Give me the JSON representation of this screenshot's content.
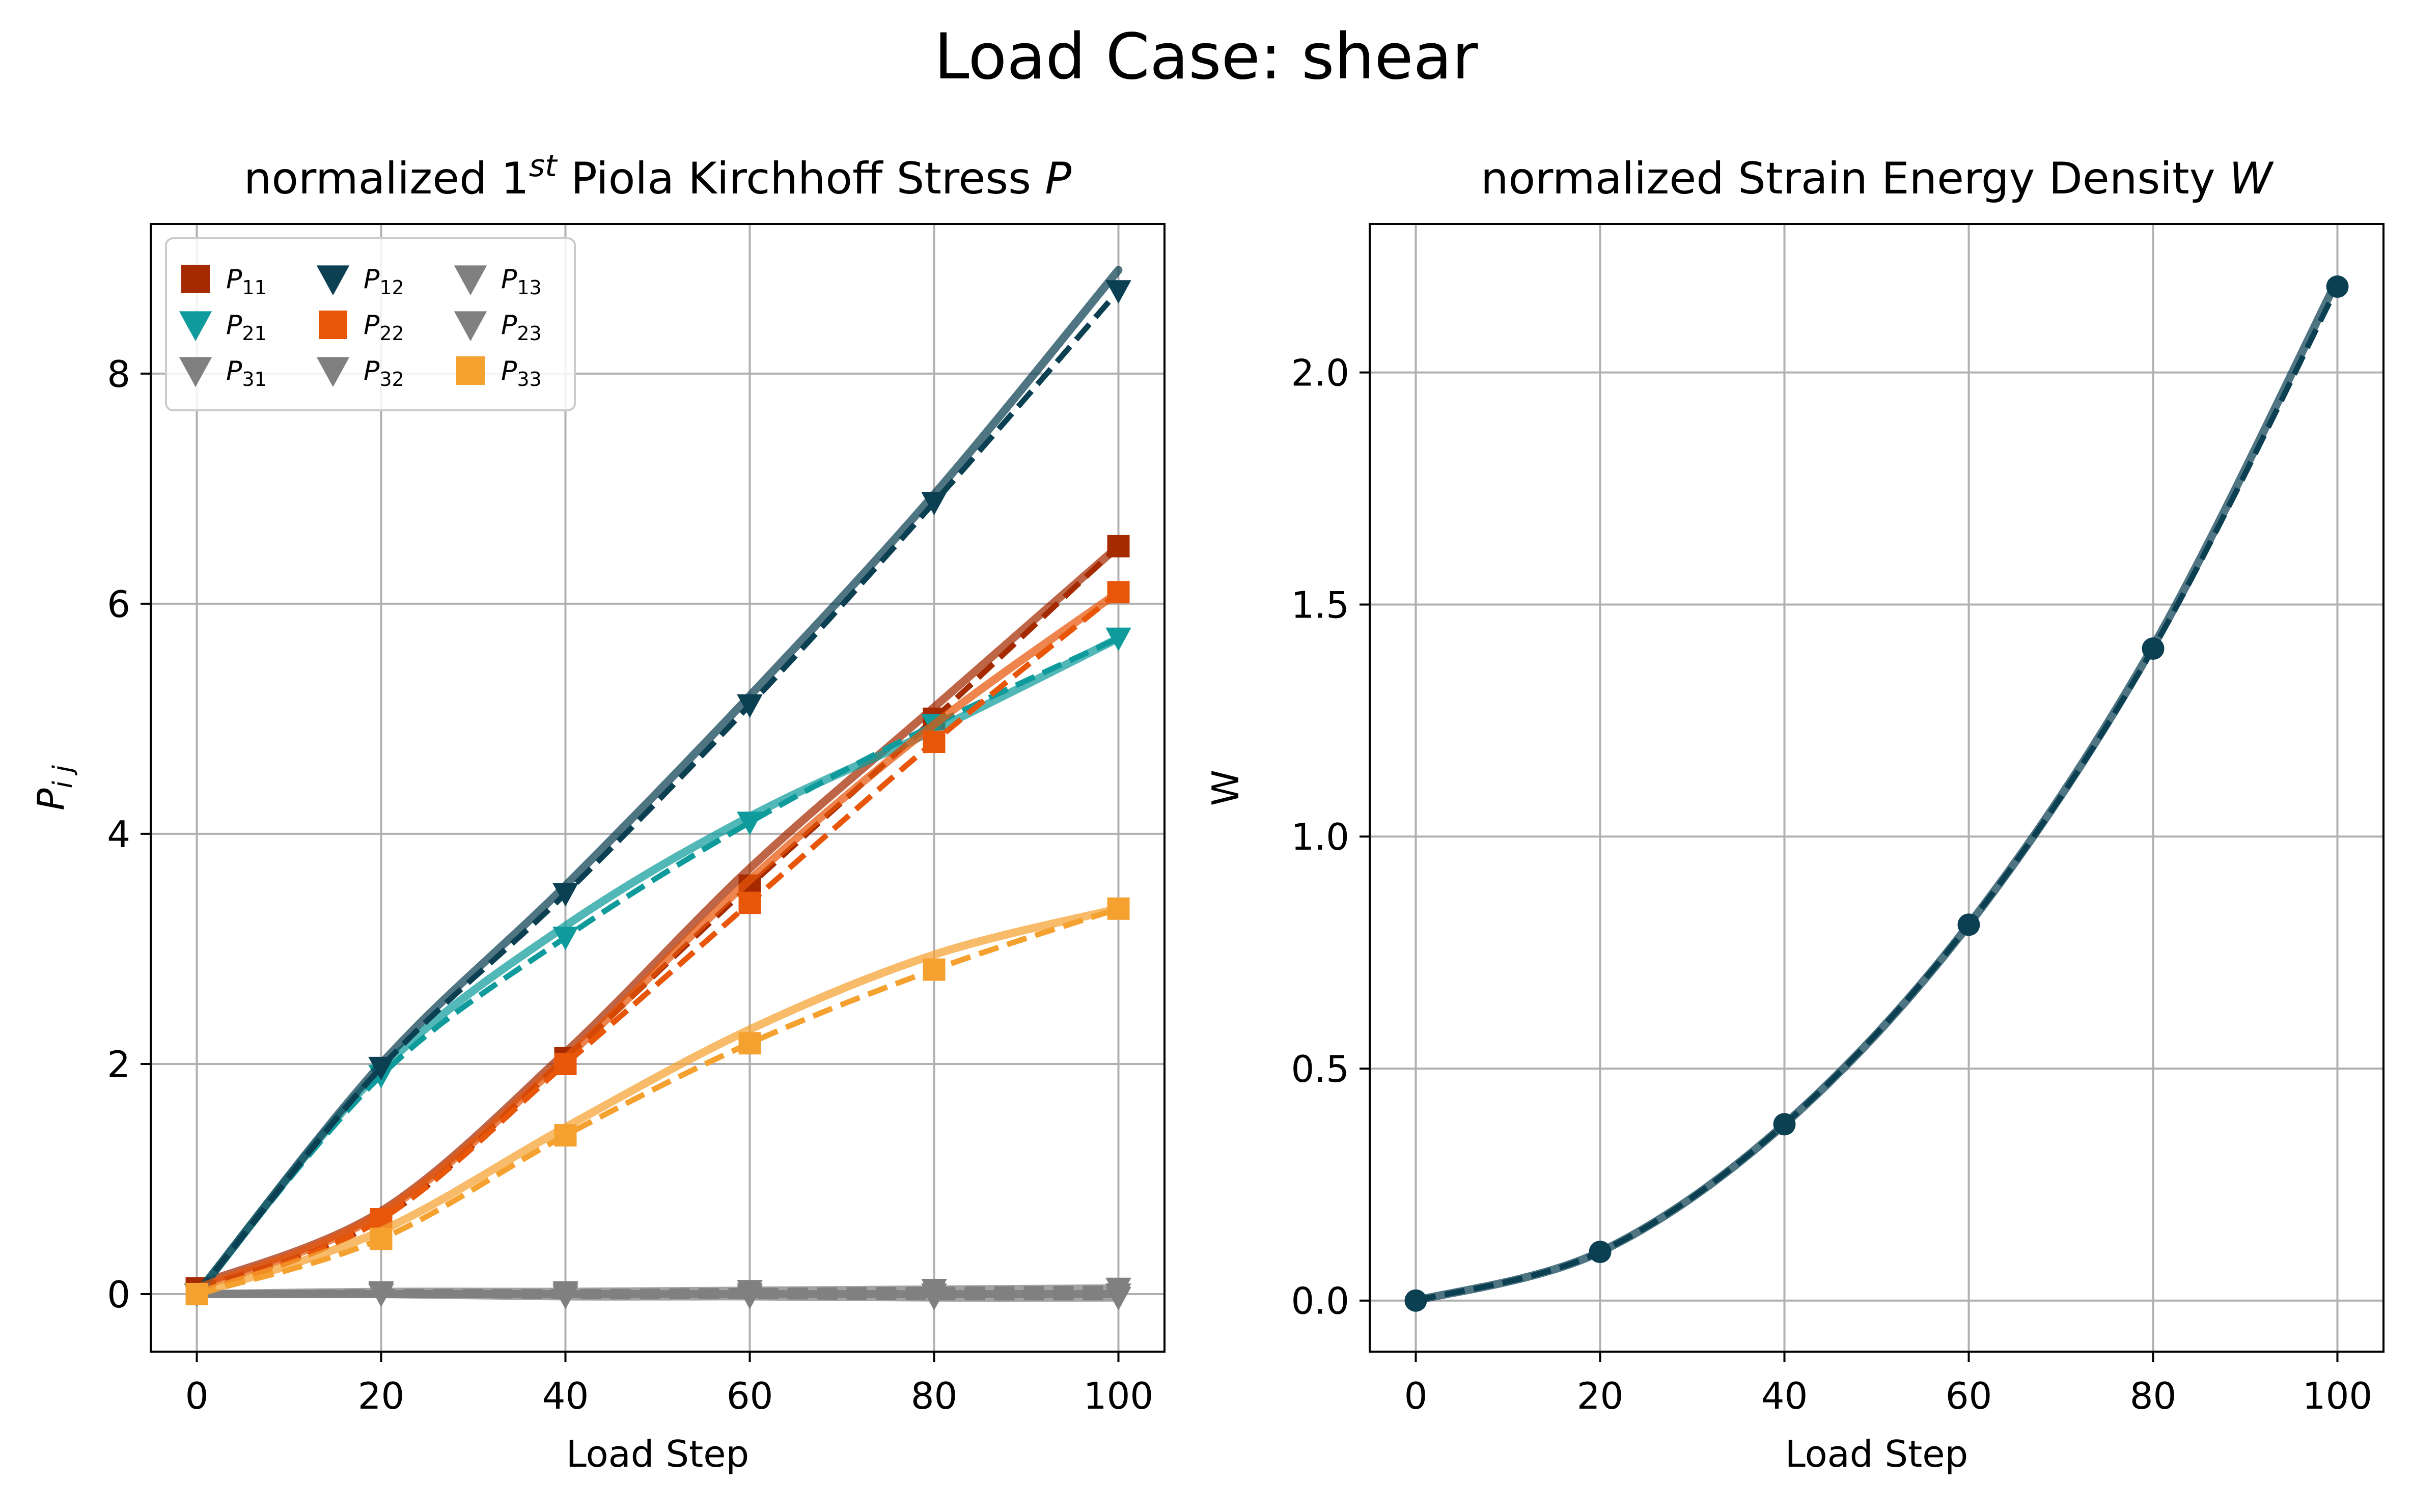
{
  "figure": {
    "suptitle": "Load Case: shear"
  },
  "chart_data": [
    {
      "type": "line",
      "title_prefix": "normalized 1",
      "title_sup": "st",
      "title_suffix": " Piola Kirchhoff Stress ",
      "title_var": "P",
      "xlabel": "Load Step",
      "ylabel": "P",
      "ylabel_sub": "i j",
      "xlim": [
        -5,
        105
      ],
      "ylim": [
        -0.5,
        9.3
      ],
      "xticks": [
        0,
        20,
        40,
        60,
        80,
        100
      ],
      "yticks": [
        0,
        2,
        4,
        6,
        8
      ],
      "grid": true,
      "legend": {
        "position": "top-left",
        "columns": 3
      },
      "x": [
        0,
        20,
        40,
        60,
        80,
        100
      ],
      "series": [
        {
          "name": "P",
          "sub": "11",
          "color": "#a52a00",
          "marker": "square",
          "values": [
            0.05,
            0.65,
            2.05,
            3.55,
            5.0,
            6.5
          ],
          "curve": [
            0.08,
            0.72,
            2.1,
            3.7,
            5.1,
            6.5
          ]
        },
        {
          "name": "P",
          "sub": "21",
          "color": "#0f9b9b",
          "marker": "triangle-down",
          "values": [
            0.0,
            1.9,
            3.1,
            4.1,
            4.95,
            5.7
          ],
          "curve": [
            0.0,
            1.95,
            3.2,
            4.15,
            4.9,
            5.7
          ]
        },
        {
          "name": "P",
          "sub": "31",
          "color": "#808080",
          "marker": "triangle-down",
          "values": [
            0.0,
            0.0,
            0.0,
            0.0,
            0.0,
            0.0
          ],
          "curve": [
            0.0,
            0.0,
            0.0,
            0.0,
            0.0,
            0.0
          ]
        },
        {
          "name": "P",
          "sub": "12",
          "color": "#0b3f52",
          "marker": "triangle-down",
          "values": [
            0.0,
            1.97,
            3.48,
            5.12,
            6.88,
            8.72
          ],
          "curve": [
            0.0,
            2.0,
            3.55,
            5.2,
            6.95,
            8.9
          ]
        },
        {
          "name": "P",
          "sub": "22",
          "color": "#e8560a",
          "marker": "square",
          "values": [
            0.0,
            0.65,
            2.0,
            3.4,
            4.8,
            6.1
          ],
          "curve": [
            0.05,
            0.7,
            2.05,
            3.6,
            4.95,
            6.1
          ]
        },
        {
          "name": "P",
          "sub": "32",
          "color": "#808080",
          "marker": "triangle-down",
          "values": [
            0.0,
            0.0,
            -0.02,
            -0.02,
            -0.03,
            -0.03
          ],
          "curve": [
            0.0,
            0.0,
            -0.02,
            -0.02,
            -0.03,
            -0.03
          ]
        },
        {
          "name": "P",
          "sub": "13",
          "color": "#808080",
          "marker": "triangle-down",
          "values": [
            0.0,
            0.02,
            0.02,
            0.03,
            0.04,
            0.05
          ],
          "curve": [
            0.0,
            0.02,
            0.02,
            0.03,
            0.04,
            0.05
          ]
        },
        {
          "name": "P",
          "sub": "23",
          "color": "#808080",
          "marker": "triangle-down",
          "values": [
            0.0,
            0.0,
            0.0,
            0.0,
            0.0,
            0.0
          ],
          "curve": [
            0.0,
            0.0,
            0.0,
            0.0,
            0.0,
            0.0
          ]
        },
        {
          "name": "P",
          "sub": "33",
          "color": "#f5a130",
          "marker": "square",
          "values": [
            0.0,
            0.48,
            1.38,
            2.18,
            2.82,
            3.35
          ],
          "curve": [
            0.0,
            0.55,
            1.45,
            2.3,
            2.95,
            3.35
          ]
        }
      ]
    },
    {
      "type": "line",
      "title_prefix": "normalized Strain Energy Density ",
      "title_sup": "",
      "title_suffix": "",
      "title_var": "W",
      "xlabel": "Load Step",
      "ylabel": "W",
      "ylabel_sub": "",
      "xlim": [
        -5,
        105
      ],
      "ylim": [
        -0.11,
        2.32
      ],
      "xticks": [
        0,
        20,
        40,
        60,
        80,
        100
      ],
      "yticks": [
        0.0,
        0.5,
        1.0,
        1.5,
        2.0
      ],
      "ytick_labels": [
        "0.0",
        "0.5",
        "1.0",
        "1.5",
        "2.0"
      ],
      "grid": true,
      "x": [
        0,
        20,
        40,
        60,
        80,
        100
      ],
      "series": [
        {
          "name": "",
          "color": "#0b3f52",
          "marker": "circle",
          "values": [
            0.0,
            0.105,
            0.38,
            0.81,
            1.405,
            2.185
          ],
          "curve": [
            0.0,
            0.105,
            0.38,
            0.81,
            1.41,
            2.2
          ]
        }
      ]
    }
  ]
}
